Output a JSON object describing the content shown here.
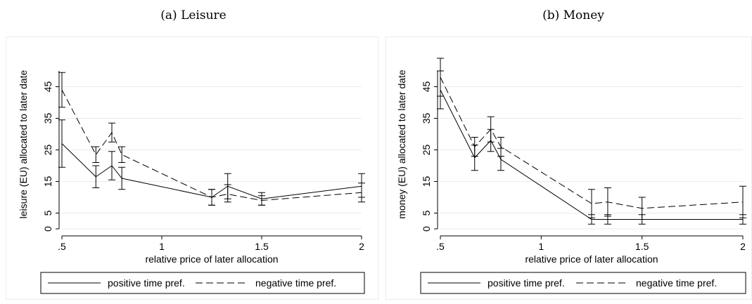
{
  "chart_data": [
    {
      "type": "line",
      "title": "(a) Leisure",
      "xlabel": "relative price of later allocation",
      "ylabel": "leisure (EU) allocated to later date",
      "xlim": [
        0.5,
        2
      ],
      "ylim": [
        0,
        50
      ],
      "xticks": [
        0.5,
        1,
        1.5,
        2
      ],
      "xtick_labels": [
        ".5",
        "1",
        "1.5",
        "2"
      ],
      "yticks": [
        0,
        5,
        15,
        25,
        35,
        45
      ],
      "ytick_labels": [
        "0",
        "5",
        "15",
        "25",
        "35",
        "45"
      ],
      "grid": true,
      "legend_position": "bottom",
      "x": [
        0.5,
        0.67,
        0.75,
        0.8,
        1.25,
        1.33,
        1.5,
        2
      ],
      "series": [
        {
          "name": "positive time pref.",
          "style": "solid",
          "values": [
            27,
            16.5,
            20,
            16,
            10,
            13.5,
            9.5,
            13.5
          ],
          "ci_low": [
            19.5,
            13,
            15.5,
            12.5,
            7.5,
            9.5,
            7.5,
            10
          ],
          "ci_high": [
            34.5,
            20,
            24.5,
            19.5,
            12.5,
            17.5,
            11.5,
            17.5
          ]
        },
        {
          "name": "negative time pref.",
          "style": "dashed",
          "values": [
            44,
            23.5,
            30.5,
            23.5,
            10,
            11,
            9,
            11.5
          ],
          "ci_low": [
            38.5,
            21,
            27.5,
            21,
            7.5,
            8.5,
            7.5,
            8.5
          ],
          "ci_high": [
            49.5,
            26,
            33.5,
            26,
            12.5,
            14,
            10.5,
            14.5
          ]
        }
      ]
    },
    {
      "type": "line",
      "title": "(b) Money",
      "xlabel": "relative price of later allocation",
      "ylabel": "money (EU) allocated to later date",
      "xlim": [
        0.5,
        2
      ],
      "ylim": [
        0,
        50
      ],
      "xticks": [
        0.5,
        1,
        1.5,
        2
      ],
      "xtick_labels": [
        ".5",
        "1",
        "1.5",
        "2"
      ],
      "yticks": [
        0,
        5,
        15,
        25,
        35,
        45
      ],
      "ytick_labels": [
        "0",
        "5",
        "15",
        "25",
        "35",
        "45"
      ],
      "grid": true,
      "legend_position": "bottom",
      "x": [
        0.5,
        0.67,
        0.75,
        0.8,
        1.25,
        1.33,
        1.5,
        2
      ],
      "series": [
        {
          "name": "positive time pref.",
          "style": "solid",
          "values": [
            44,
            22.5,
            28,
            22,
            3,
            3,
            3,
            3
          ],
          "ci_low": [
            38,
            18.5,
            24.5,
            18.5,
            1.5,
            1.5,
            1.5,
            1.5
          ],
          "ci_high": [
            50,
            26.5,
            31.5,
            25.5,
            4.5,
            4.5,
            4.5,
            4.5
          ]
        },
        {
          "name": "negative time pref.",
          "style": "dashed",
          "values": [
            48,
            26,
            31.5,
            26,
            8,
            8.5,
            6.5,
            8.5
          ],
          "ci_low": [
            42,
            23,
            27.5,
            23,
            3.5,
            4,
            3,
            3.5
          ],
          "ci_high": [
            54,
            29,
            35.5,
            29,
            12.5,
            13,
            10,
            13.5
          ]
        }
      ]
    }
  ]
}
